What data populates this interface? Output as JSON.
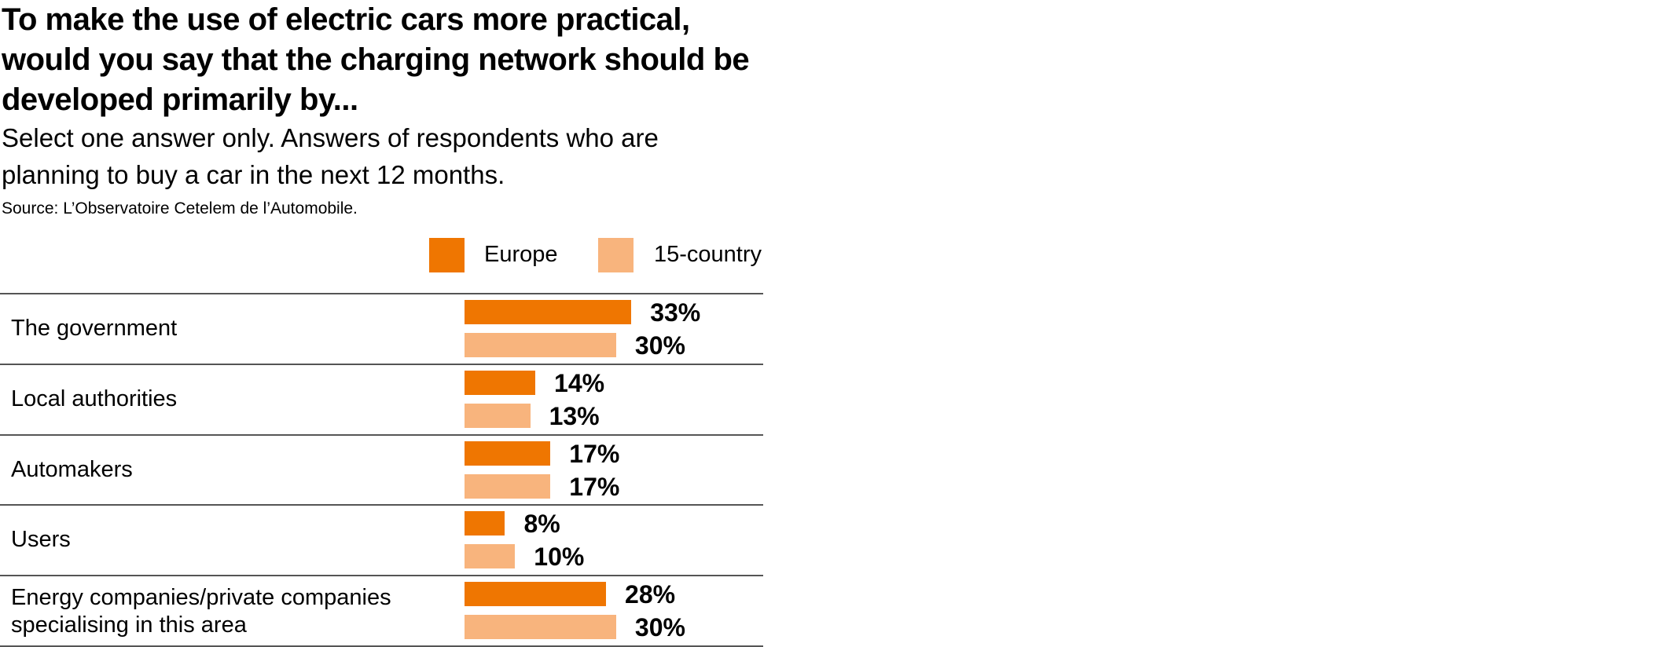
{
  "chart_data": {
    "type": "bar",
    "orientation": "horizontal",
    "title": "To make the use of electric cars more practical, would you say that the charging network should be developed primarily by...",
    "subtitle": "Select one answer only. Answers of respondents who are planning to buy a car in the next 12 months.",
    "source": "Source: L’Observatoire Cetelem de l’Automobile.",
    "categories": [
      "The government",
      "Local authorities",
      "Automakers",
      "Users",
      "Energy companies/private companies specialising in this area"
    ],
    "series": [
      {
        "name": "Europe",
        "color": "#EF7601",
        "values": [
          33,
          14,
          17,
          8,
          28
        ],
        "labels": [
          "33%",
          "14%",
          "17%",
          "8%",
          "28%"
        ]
      },
      {
        "name": "15-country",
        "color": "#F8B47D",
        "values": [
          30,
          13,
          17,
          10,
          30
        ],
        "labels": [
          "30%",
          "13%",
          "17%",
          "10%",
          "30%"
        ]
      }
    ],
    "legend_position": "top-right",
    "xlim": [
      0,
      100
    ],
    "unit": "%"
  }
}
